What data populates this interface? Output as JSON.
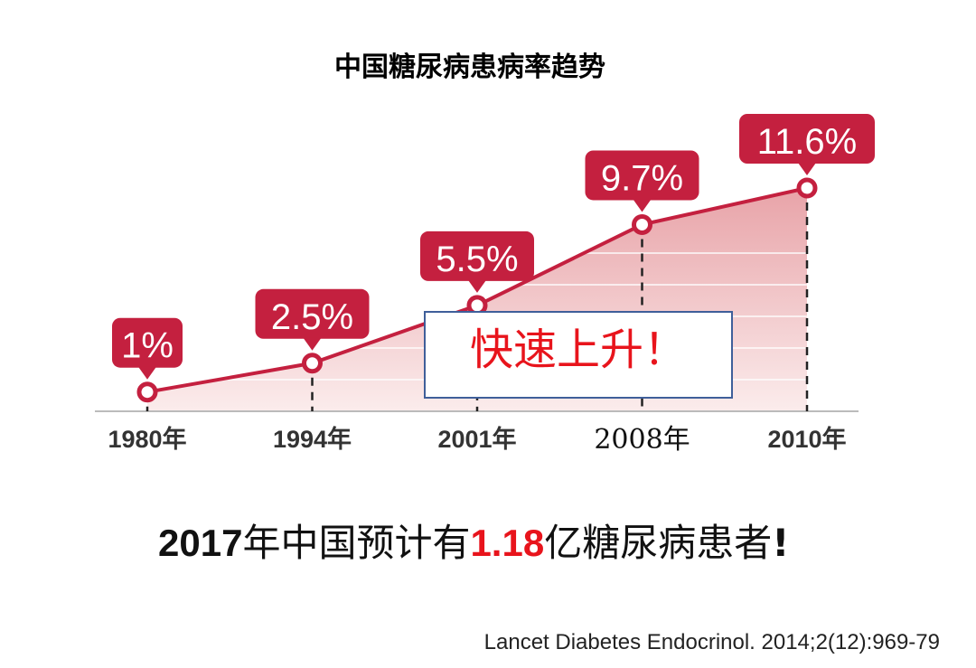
{
  "chart_data": {
    "type": "area",
    "title": "中国糖尿病患病率趋势",
    "categories": [
      "1980年",
      "1994年",
      "2001年",
      "2008年",
      "2010年"
    ],
    "values": [
      1,
      2.5,
      5.5,
      9.7,
      11.6
    ],
    "value_labels": [
      "1%",
      "2.5%",
      "5.5%",
      "9.7%",
      "11.6%"
    ],
    "color": "#c4203f",
    "annotation": "快速上升！"
  },
  "note": {
    "parts": [
      "2017",
      "年中国预计有",
      "1.18",
      "亿糖尿病患者",
      "!"
    ]
  },
  "citation": "Lancet Diabetes Endocrinol. 2014;2(12):969-79"
}
